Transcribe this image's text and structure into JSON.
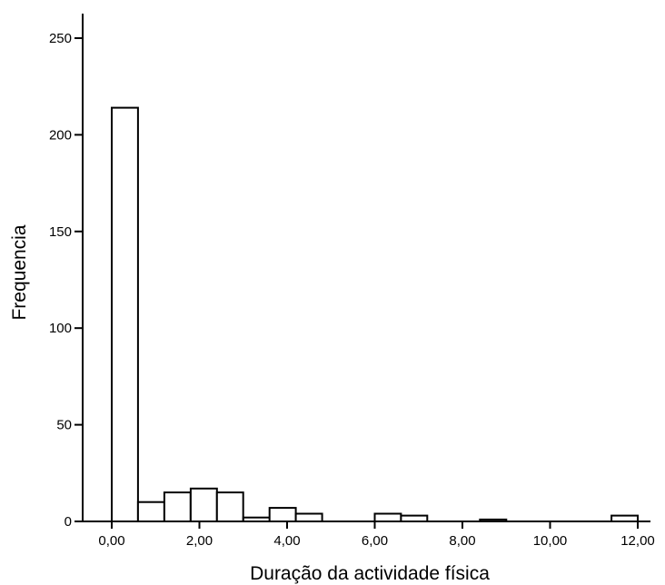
{
  "chart_data": {
    "type": "bar",
    "subtype": "histogram",
    "title": "",
    "xlabel": "Duração da actividade física",
    "ylabel": "Frequencia",
    "xlim": [
      0,
      12
    ],
    "ylim": [
      0,
      260
    ],
    "x_ticks": [
      0,
      2,
      4,
      6,
      8,
      10,
      12
    ],
    "x_tick_labels": [
      "0,00",
      "2,00",
      "4,00",
      "6,00",
      "8,00",
      "10,00",
      "12,00"
    ],
    "y_ticks": [
      0,
      50,
      100,
      150,
      200,
      250
    ],
    "y_tick_labels": [
      "0",
      "50",
      "100",
      "150",
      "200",
      "250"
    ],
    "bin_width": 0.6,
    "bins_start": [
      0.0,
      0.6,
      1.2,
      1.8,
      2.4,
      3.0,
      3.6,
      4.2,
      4.8,
      5.4,
      6.0,
      6.6,
      7.2,
      7.8,
      8.4,
      9.0,
      9.6,
      10.2,
      10.8,
      11.4
    ],
    "values": [
      214,
      10,
      15,
      17,
      15,
      2,
      7,
      4,
      0,
      0,
      4,
      3,
      0,
      0,
      1,
      0,
      0,
      0,
      0,
      3
    ],
    "bar_fill": "#ffffff",
    "bar_stroke": "#000000",
    "grid": false,
    "legend": "none"
  }
}
